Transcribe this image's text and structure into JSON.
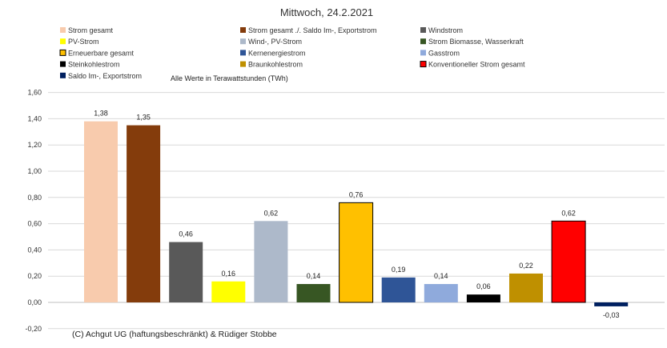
{
  "chart_data": {
    "type": "bar",
    "title": "Mittwoch,  24.2.2021",
    "note": "Alle Werte in Terawattstunden (TWh)",
    "footer": "(C) Achgut UG (haftungsbeschränkt) & Rüdiger Stobbe",
    "ylim": [
      -0.2,
      1.6
    ],
    "yticks": [
      "1,60",
      "1,40",
      "1,20",
      "1,00",
      "0,80",
      "0,60",
      "0,40",
      "0,20",
      "0,00",
      "-0,20"
    ],
    "ytick_values": [
      1.6,
      1.4,
      1.2,
      1.0,
      0.8,
      0.6,
      0.4,
      0.2,
      0.0,
      -0.2
    ],
    "grid": true,
    "legend_position": "top",
    "series": [
      {
        "name": "Strom gesamt",
        "value": 1.38,
        "label": "1,38",
        "color": "#f8cbad",
        "outline": false
      },
      {
        "name": "Strom gesamt ./. Saldo Im-, Exportstrom",
        "value": 1.35,
        "label": "1,35",
        "color": "#843c0c",
        "outline": false
      },
      {
        "name": "Windstrom",
        "value": 0.46,
        "label": "0,46",
        "color": "#595959",
        "outline": false
      },
      {
        "name": "PV-Strom",
        "value": 0.16,
        "label": "0,16",
        "color": "#ffff00",
        "outline": false
      },
      {
        "name": "Wind-, PV-Strom",
        "value": 0.62,
        "label": "0,62",
        "color": "#adb9ca",
        "outline": false
      },
      {
        "name": "Strom Biomasse, Wasserkraft",
        "value": 0.14,
        "label": "0,14",
        "color": "#375623",
        "outline": false
      },
      {
        "name": "Erneuerbare gesamt",
        "value": 0.76,
        "label": "0,76",
        "color": "#ffc000",
        "outline": true
      },
      {
        "name": "Kernenergiestrom",
        "value": 0.19,
        "label": "0,19",
        "color": "#2f5597",
        "outline": false
      },
      {
        "name": "Gasstrom",
        "value": 0.14,
        "label": "0,14",
        "color": "#8faadc",
        "outline": false
      },
      {
        "name": "Steinkohlestrom",
        "value": 0.06,
        "label": "0,06",
        "color": "#000000",
        "outline": false
      },
      {
        "name": "Braunkohlestrom",
        "value": 0.22,
        "label": "0,22",
        "color": "#bf9000",
        "outline": false
      },
      {
        "name": "Konventioneller Strom gesamt",
        "value": 0.62,
        "label": "0,62",
        "color": "#ff0000",
        "outline": true
      },
      {
        "name": "Saldo Im-, Exportstrom",
        "value": -0.03,
        "label": "-0,03",
        "color": "#002060",
        "outline": false
      }
    ]
  }
}
